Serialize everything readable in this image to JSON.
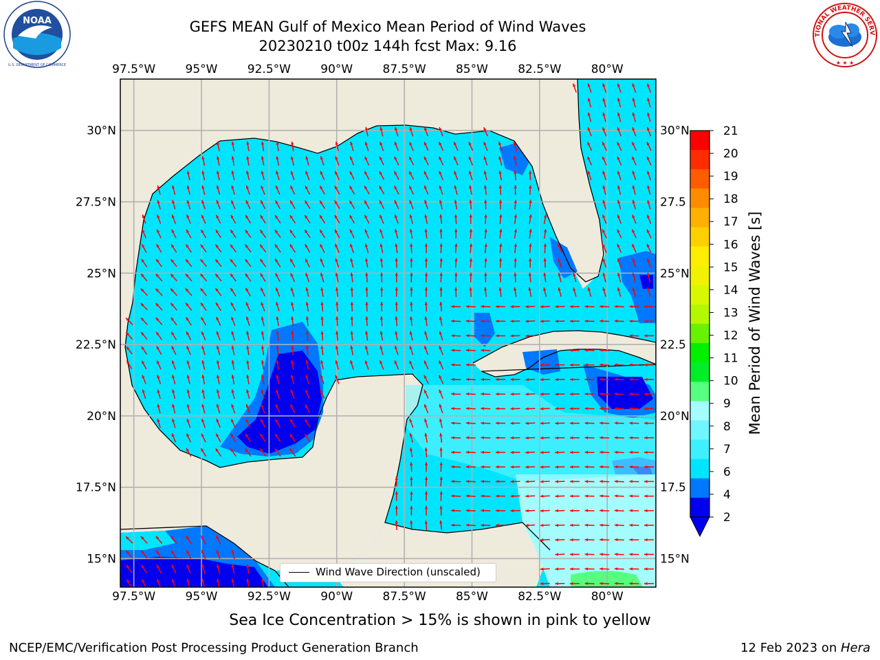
{
  "header": {
    "title_line1": "GEFS MEAN Gulf of Mexico Mean Period of Wind Waves",
    "title_line2": "20230210 t00z 144h fcst   Max: 9.16"
  },
  "logos": {
    "left": {
      "name": "noaa-logo",
      "text": "NOAA",
      "ring_text": "NATIONAL OCEANIC AND ATMOSPHERIC ADMINISTRATION · U.S. DEPARTMENT OF COMMERCE"
    },
    "right": {
      "name": "nws-logo",
      "ring_text": "NATIONAL WEATHER SERVICE"
    }
  },
  "map": {
    "lon_ticks": [
      "97.5°W",
      "95°W",
      "92.5°W",
      "90°W",
      "87.5°W",
      "85°W",
      "82.5°W",
      "80°W"
    ],
    "lat_ticks": [
      "15°N",
      "17.5°N",
      "20°N",
      "22.5°N",
      "25°N",
      "27.5°N",
      "30°N"
    ],
    "lat_ticks_right": [
      "15°N",
      "17.5",
      "20°N",
      "22.5",
      "25°N",
      "27.5",
      "30°N"
    ],
    "extent": {
      "lon_min": -98,
      "lon_max": -78.2,
      "lat_min": 14.0,
      "lat_max": 31.8
    },
    "grid": true,
    "land_color": "#efebdc",
    "vector_color": "#ff0000",
    "legend": {
      "label": "Wind Wave Direction (unscaled)",
      "placement": "lower-center"
    }
  },
  "colorbar": {
    "label": "Mean Period of Wind Waves [s]",
    "ticks": [
      "2",
      "4",
      "6",
      "7",
      "8",
      "9",
      "10",
      "11",
      "12",
      "13",
      "14",
      "15",
      "16",
      "17",
      "18",
      "19",
      "20",
      "21"
    ],
    "colors": [
      "#0000ee",
      "#0078ff",
      "#00e5ff",
      "#3ef0ff",
      "#70f6ff",
      "#a5fcff",
      "#56ff80",
      "#00ee2a",
      "#00f000",
      "#66f200",
      "#b4f800",
      "#d8f800",
      "#f0f200",
      "#ffee00",
      "#ffd000",
      "#ffb000",
      "#ff8c00",
      "#ff5c00",
      "#ff2c00",
      "#ff0000"
    ],
    "extend": "min"
  },
  "footer": {
    "subtitle": "Sea Ice Concentration > 15% is shown in pink to yellow",
    "left": "NCEP/EMC/Verification Post Processing Product Generation Branch",
    "right_date": "12 Feb 2023 on ",
    "right_host": "Hera"
  }
}
